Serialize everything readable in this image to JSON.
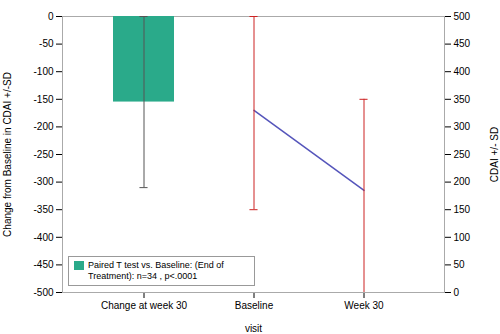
{
  "chart_data": {
    "type": "bar",
    "categories": [
      "Change at week 30",
      "Baseline",
      "Week 30"
    ],
    "xlabel": "visit",
    "ylabel": "Change from Baseline in CDAI +/-SD",
    "y2label": "CDAI +/- SD",
    "ylim": [
      -500,
      0
    ],
    "yticks": [
      0,
      -50,
      -100,
      -150,
      -200,
      -250,
      -300,
      -350,
      -400,
      -450,
      -500
    ],
    "y2lim": [
      0,
      500
    ],
    "y2ticks": [
      0,
      50,
      100,
      150,
      200,
      250,
      300,
      350,
      400,
      450,
      500
    ],
    "grid": false,
    "legend": "lower left",
    "series": [
      {
        "name": "Paired T test vs. Baseline: (End of Treatment): n=34 , p<.0001",
        "type": "bar",
        "color": "#2aaa8a",
        "values": [
          -155,
          null,
          null
        ],
        "error_low": [
          155,
          null,
          null
        ],
        "error_high": [
          155,
          null,
          null
        ],
        "error_color": "#555555"
      },
      {
        "type": "line",
        "axis": "y2",
        "color": "#5555bb",
        "line_style": "solid",
        "values": [
          null,
          330,
          185
        ],
        "error_low": [
          null,
          180,
          185
        ],
        "error_high": [
          null,
          170,
          165
        ],
        "error_color": "#cc2222"
      }
    ]
  }
}
